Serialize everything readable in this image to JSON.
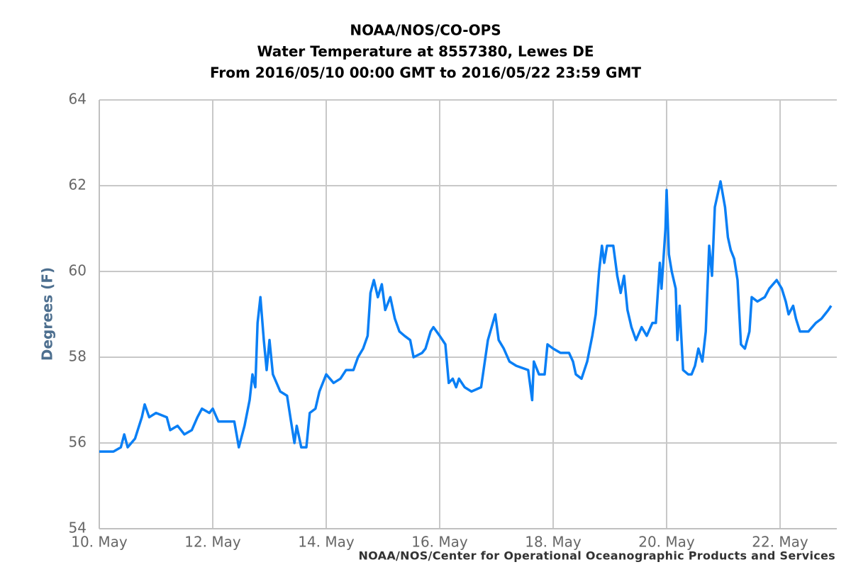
{
  "chart_data": {
    "type": "line",
    "title_lines": [
      "NOAA/NOS/CO-OPS",
      "Water Temperature at 8557380, Lewes DE",
      "From 2016/05/10 00:00 GMT to 2016/05/22 23:59 GMT"
    ],
    "y_label": "Degrees (F)",
    "credits": "NOAA/NOS/Center for Operational Oceanographic Products and Services",
    "xlim": [
      10,
      23
    ],
    "xticks": [
      {
        "value": 10,
        "label": "10. May"
      },
      {
        "value": 12,
        "label": "12. May"
      },
      {
        "value": 14,
        "label": "14. May"
      },
      {
        "value": 16,
        "label": "16. May"
      },
      {
        "value": 18,
        "label": "18. May"
      },
      {
        "value": 20,
        "label": "20. May"
      },
      {
        "value": 22,
        "label": "22. May"
      }
    ],
    "ylim": [
      54,
      64
    ],
    "yticks": [
      54,
      56,
      58,
      60,
      62,
      64
    ],
    "grid": true,
    "x": [
      10.0,
      10.25,
      10.38,
      10.44,
      10.5,
      10.63,
      10.75,
      10.8,
      10.88,
      11.0,
      11.19,
      11.25,
      11.38,
      11.5,
      11.63,
      11.73,
      11.81,
      11.94,
      12.0,
      12.1,
      12.38,
      12.46,
      12.56,
      12.65,
      12.7,
      12.75,
      12.79,
      12.84,
      12.9,
      12.95,
      13.0,
      13.06,
      13.19,
      13.31,
      13.38,
      13.44,
      13.48,
      13.56,
      13.65,
      13.71,
      13.81,
      13.88,
      14.0,
      14.13,
      14.25,
      14.35,
      14.48,
      14.56,
      14.65,
      14.73,
      14.78,
      14.84,
      14.91,
      14.98,
      15.04,
      15.13,
      15.21,
      15.29,
      15.38,
      15.48,
      15.54,
      15.69,
      15.75,
      15.84,
      15.89,
      16.0,
      16.1,
      16.16,
      16.23,
      16.29,
      16.34,
      16.44,
      16.56,
      16.73,
      16.85,
      16.98,
      17.04,
      17.13,
      17.23,
      17.35,
      17.56,
      17.6,
      17.63,
      17.66,
      17.75,
      17.85,
      17.9,
      18.0,
      18.13,
      18.28,
      18.35,
      18.4,
      18.5,
      18.6,
      18.69,
      18.75,
      18.81,
      18.86,
      18.9,
      18.95,
      19.06,
      19.13,
      19.19,
      19.25,
      19.31,
      19.38,
      19.46,
      19.56,
      19.65,
      19.75,
      19.81,
      19.88,
      19.91,
      19.98,
      20.0,
      20.04,
      20.09,
      20.16,
      20.19,
      20.23,
      20.29,
      20.38,
      20.44,
      20.5,
      20.56,
      20.63,
      20.69,
      20.75,
      20.8,
      20.85,
      20.9,
      20.95,
      21.03,
      21.08,
      21.13,
      21.19,
      21.25,
      21.31,
      21.38,
      21.46,
      21.5,
      21.6,
      21.73,
      21.81,
      21.94,
      22.03,
      22.1,
      22.15,
      22.23,
      22.28,
      22.35,
      22.5,
      22.63,
      22.73,
      22.79,
      22.85,
      22.9
    ],
    "series": [
      {
        "color": "#0a7ff5",
        "values": [
          55.8,
          55.8,
          55.9,
          56.2,
          55.9,
          56.1,
          56.6,
          56.9,
          56.6,
          56.7,
          56.6,
          56.3,
          56.4,
          56.2,
          56.3,
          56.6,
          56.8,
          56.7,
          56.8,
          56.5,
          56.5,
          55.9,
          56.4,
          57.0,
          57.6,
          57.3,
          58.8,
          59.4,
          58.4,
          57.7,
          58.4,
          57.6,
          57.2,
          57.1,
          56.5,
          56.0,
          56.4,
          55.9,
          55.9,
          56.7,
          56.8,
          57.2,
          57.6,
          57.4,
          57.5,
          57.7,
          57.7,
          58.0,
          58.2,
          58.5,
          59.5,
          59.8,
          59.4,
          59.7,
          59.1,
          59.4,
          58.9,
          58.6,
          58.5,
          58.4,
          58.0,
          58.1,
          58.2,
          58.6,
          58.7,
          58.5,
          58.3,
          57.4,
          57.5,
          57.3,
          57.5,
          57.3,
          57.2,
          57.3,
          58.4,
          59.0,
          58.4,
          58.2,
          57.9,
          57.8,
          57.7,
          57.3,
          57.0,
          57.9,
          57.6,
          57.6,
          58.3,
          58.2,
          58.1,
          58.1,
          57.9,
          57.6,
          57.5,
          57.9,
          58.5,
          59.0,
          60.0,
          60.6,
          60.2,
          60.6,
          60.6,
          59.9,
          59.5,
          59.9,
          59.1,
          58.7,
          58.4,
          58.7,
          58.5,
          58.8,
          58.8,
          60.2,
          59.6,
          61.0,
          61.9,
          60.4,
          60.0,
          59.6,
          58.4,
          59.2,
          57.7,
          57.6,
          57.6,
          57.8,
          58.2,
          57.9,
          58.6,
          60.6,
          59.9,
          61.5,
          61.8,
          62.1,
          61.5,
          60.8,
          60.5,
          60.3,
          59.8,
          58.3,
          58.2,
          58.6,
          59.4,
          59.3,
          59.4,
          59.6,
          59.8,
          59.6,
          59.3,
          59.0,
          59.2,
          58.9,
          58.6,
          58.6,
          58.8,
          58.9,
          59.0,
          59.1,
          59.2
        ]
      }
    ]
  }
}
